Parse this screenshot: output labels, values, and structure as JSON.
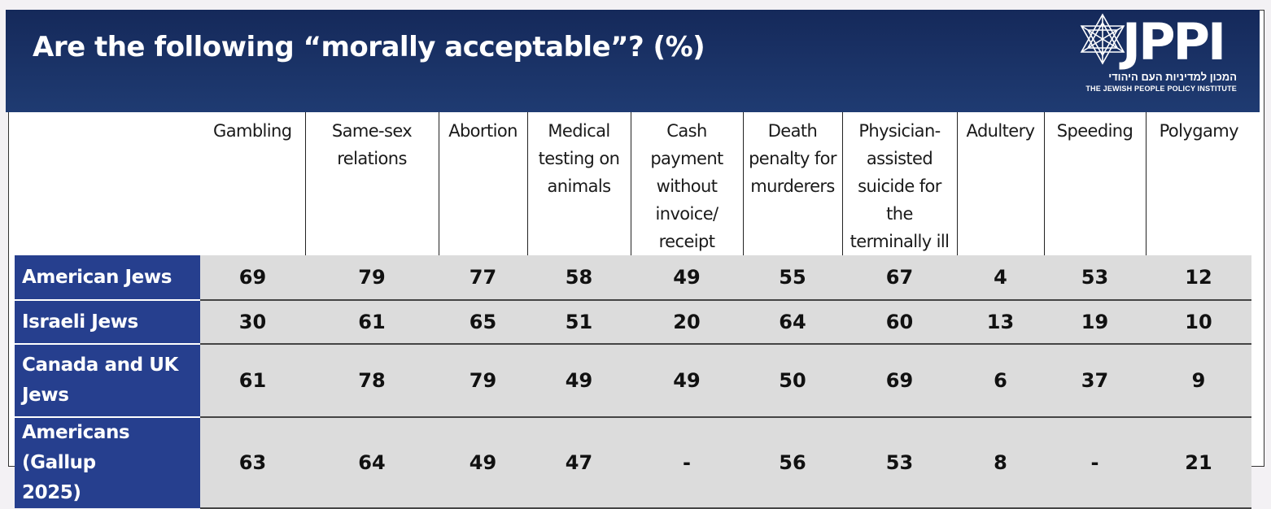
{
  "header": {
    "title": "Are the following “morally acceptable”? (%)",
    "background_color": "#1c3466"
  },
  "logo": {
    "word": "JPPI",
    "hebrew": "המכון למדיניות העם היהודי",
    "english": "THE JEWISH PEOPLE POLICY INSTITUTE",
    "icon": "star-of-david-icon"
  },
  "chart_data": {
    "type": "table",
    "title": "Are the following “morally acceptable”? (%)",
    "columns": [
      "Gambling",
      "Same-sex relations",
      "Abortion",
      "Medical testing on animals",
      "Cash payment without invoice/ receipt",
      "Death penalty for murderers",
      "Physician-assisted suicide for the terminally ill",
      "Adultery",
      "Speeding",
      "Polygamy"
    ],
    "columns_display": [
      [
        "Gambling"
      ],
      [
        "Same-sex",
        "relations"
      ],
      [
        "Abortion"
      ],
      [
        "Medical",
        "testing on",
        "animals"
      ],
      [
        "Cash payment",
        "without",
        "invoice/",
        "receipt"
      ],
      [
        "Death",
        "penalty for",
        "murderers"
      ],
      [
        "Physician-",
        "assisted",
        "suicide for the",
        "terminally ill"
      ],
      [
        "Adultery"
      ],
      [
        "Speeding"
      ],
      [
        "Polygamy"
      ]
    ],
    "rows": [
      {
        "label": "American Jews",
        "label_display": [
          "American Jews"
        ],
        "values": [
          "69",
          "79",
          "77",
          "58",
          "49",
          "55",
          "67",
          "4",
          "53",
          "12"
        ]
      },
      {
        "label": "Israeli Jews",
        "label_display": [
          "Israeli Jews"
        ],
        "values": [
          "30",
          "61",
          "65",
          "51",
          "20",
          "64",
          "60",
          "13",
          "19",
          "10"
        ]
      },
      {
        "label": "Canada and UK Jews",
        "label_display": [
          "Canada and UK",
          "Jews"
        ],
        "values": [
          "61",
          "78",
          "79",
          "49",
          "49",
          "50",
          "69",
          "6",
          "37",
          "9"
        ]
      },
      {
        "label": "Americans (Gallup 2025)",
        "label_display": [
          "Americans (Gallup",
          "2025)"
        ],
        "values": [
          "63",
          "64",
          "49",
          "47",
          "-",
          "56",
          "53",
          "8",
          "-",
          "21"
        ]
      }
    ],
    "colors": {
      "row_label_background": "#263f8e",
      "cell_background": "#dcdcdc"
    }
  }
}
